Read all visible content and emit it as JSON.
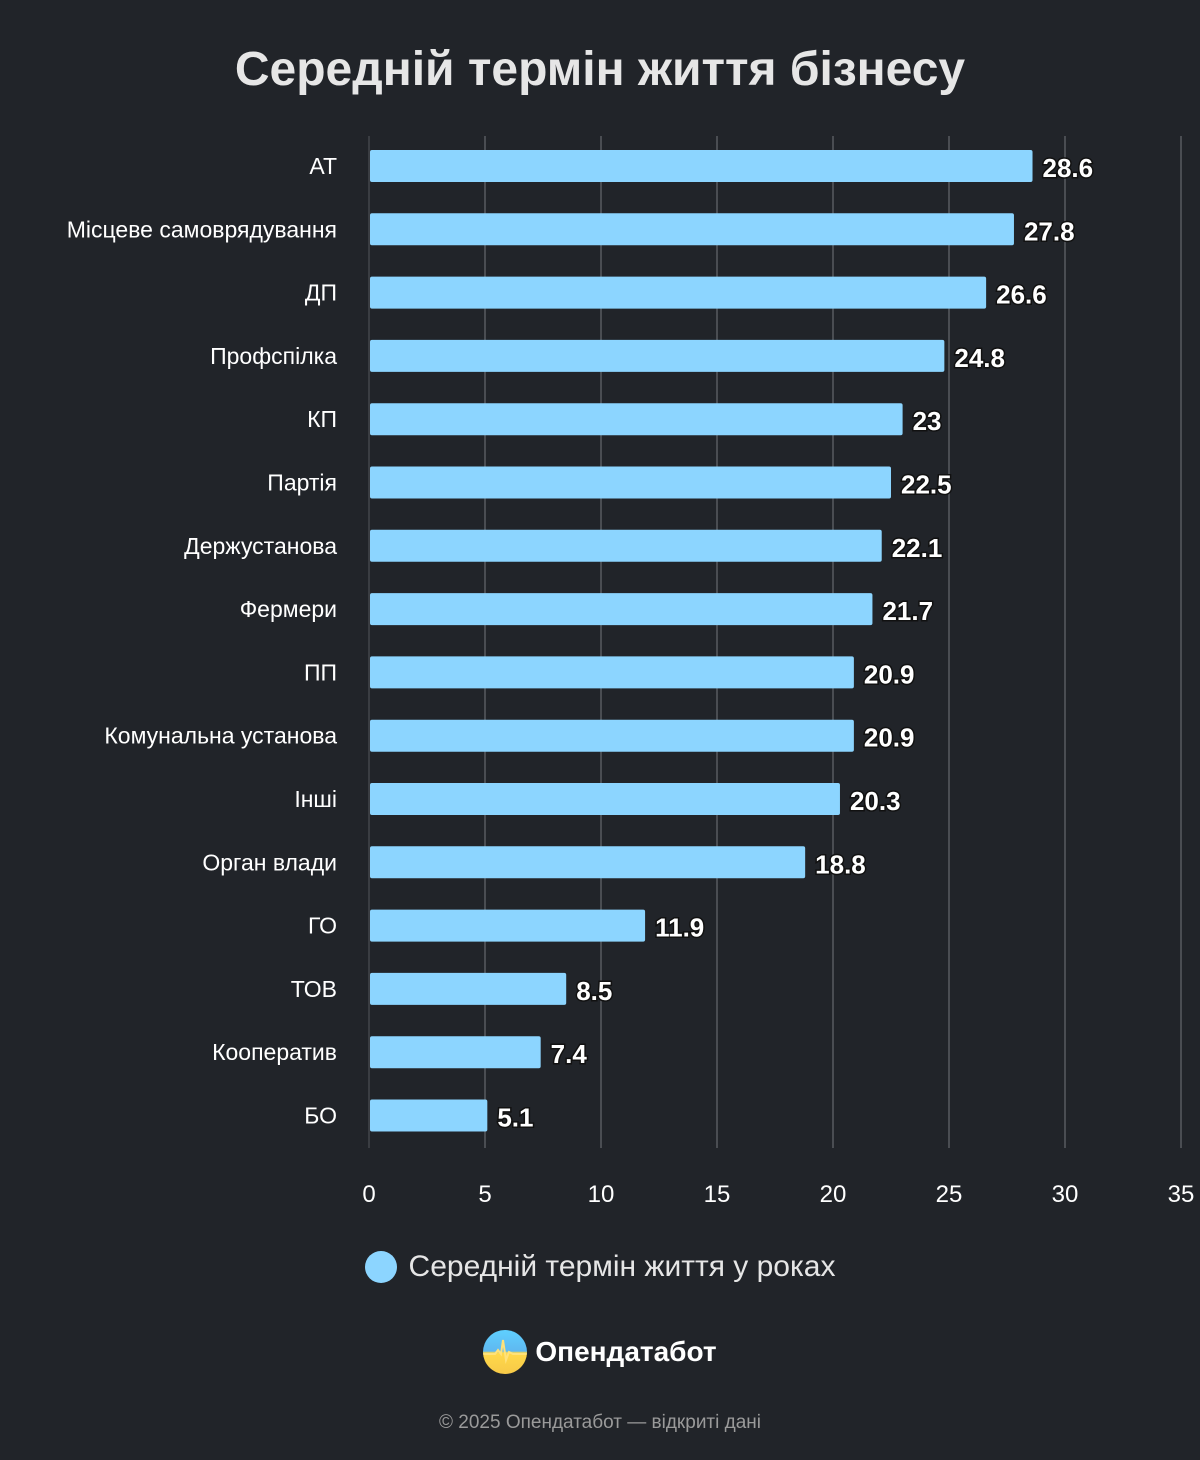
{
  "chart_data": {
    "type": "bar",
    "orientation": "horizontal",
    "title": "Середній термін життя бізнесу",
    "categories": [
      "АТ",
      "Місцеве самоврядування",
      "ДП",
      "Профспілка",
      "КП",
      "Партія",
      "Держустанова",
      "Фермери",
      "ПП",
      "Комунальна установа",
      "Інші",
      "Орган влади",
      "ГО",
      "ТОВ",
      "Кооператив",
      "БО"
    ],
    "series": [
      {
        "name": "Середній термін життя у роках",
        "values": [
          28.6,
          27.8,
          26.6,
          24.8,
          23,
          22.5,
          22.1,
          21.7,
          20.9,
          20.9,
          20.3,
          18.8,
          11.9,
          8.5,
          7.4,
          5.1
        ],
        "color": "#8cd5ff"
      }
    ],
    "xlim": [
      0,
      35
    ],
    "xticks": [
      "0",
      "5",
      "10",
      "15",
      "20",
      "25",
      "30",
      "35"
    ],
    "grid": "vertical",
    "legend": "bottom",
    "data_labels": true
  },
  "brand": {
    "name": "Опендатабот",
    "logo_icon": "opendatabot-logo"
  },
  "footer": "© 2025 Опендатабот — відкриті дані",
  "colors": {
    "background": "#212429",
    "bar": "#8cd5ff",
    "grid": "#4a4d52"
  }
}
